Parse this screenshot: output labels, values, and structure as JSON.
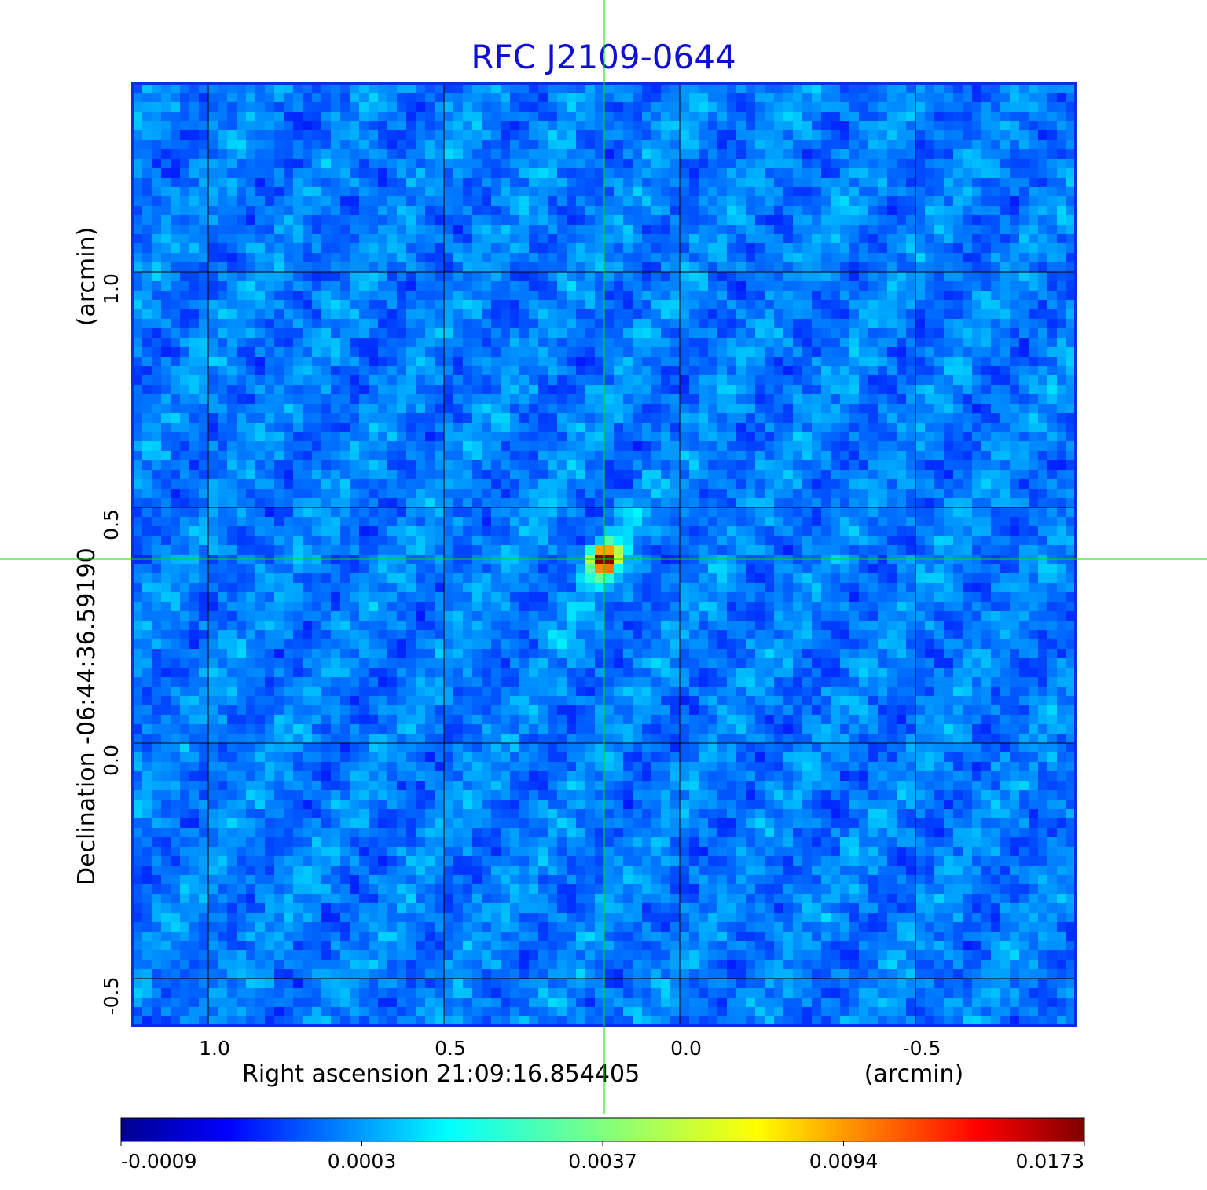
{
  "chart_data": {
    "type": "heatmap",
    "title": "RFC J2109-0644",
    "xlabel": "Right ascension  21:09:16.854405",
    "xunit": "(arcmin)",
    "ylabel": "Declination  -06:44:36.59190",
    "yunit": "(arcmin)",
    "xlim": [
      1.16,
      -0.84
    ],
    "ylim": [
      -0.6,
      1.4
    ],
    "xticks": [
      1.0,
      0.5,
      0.0,
      -0.5
    ],
    "xtick_labels": [
      "1.0",
      "0.5",
      "0.0",
      "-0.5"
    ],
    "yticks": [
      -0.5,
      0.0,
      0.5,
      1.0
    ],
    "ytick_labels": [
      "-0.5",
      "0.0",
      "0.5",
      "1.0"
    ],
    "grid": true,
    "crosshair": {
      "x": 0.16,
      "y": 0.39
    },
    "peak_source": {
      "x": 0.16,
      "y": 0.39,
      "value": 0.0173
    },
    "colorbar": {
      "colormap": "jet",
      "min": -0.0009,
      "max": 0.0173,
      "ticks": [
        -0.0009,
        0.0003,
        0.0037,
        0.0094,
        0.0173
      ],
      "tick_labels": [
        "-0.0009",
        "0.0003",
        "0.0037",
        "0.0094",
        "0.0173"
      ]
    },
    "colors": {
      "title": "#1010d0",
      "frame": "#0a2ee0",
      "grid": "#000000",
      "crosshair": "#00e000"
    }
  }
}
